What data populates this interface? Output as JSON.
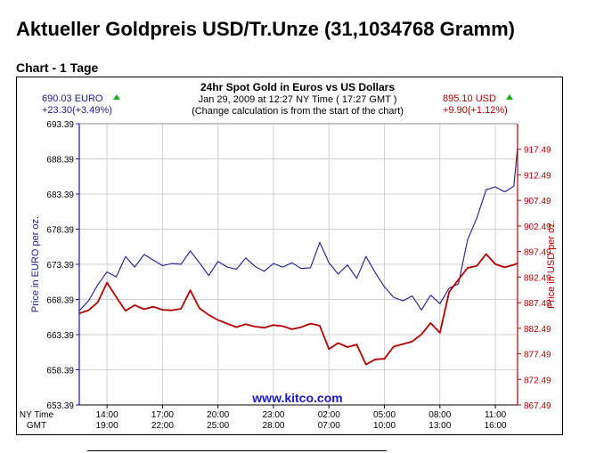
{
  "page": {
    "title": "Aktueller Goldpreis USD/Tr.Unze (31,1034768 Gramm)",
    "chart_heading": "Chart - 1 Tage"
  },
  "colors": {
    "eur_series": "#1a1a8c",
    "usd_series": "#b30000",
    "up_arrow": "#22aa22",
    "watermark": "#1a1acc",
    "grid": "#d0d0d0"
  },
  "chart_data": {
    "type": "line",
    "title": "24hr Spot Gold in Euros vs US Dollars",
    "subtitle": "Jan 29, 2009 at 12:27 NY Time ( 17:27 GMT )",
    "note": "(Change calculation is from the start of the chart)",
    "watermark": "www.kitco.com",
    "left_quote": {
      "price": "690.03 EURO",
      "change": "+23.30(+3.49%)"
    },
    "right_quote": {
      "price": "895.10 USD",
      "change": "+9.90(+1.12%)"
    },
    "ylabel_left": "Price in EURO per oz.",
    "ylabel_right": "Price in USD per oz.",
    "ylim_left": [
      653.39,
      693.39
    ],
    "ylim_right": [
      867.49,
      922.49
    ],
    "yticks_left": [
      "693.39",
      "688.39",
      "683.39",
      "678.39",
      "673.39",
      "668.39",
      "663.39",
      "658.39",
      "653.39"
    ],
    "yticks_right": [
      "917.49",
      "912.49",
      "907.49",
      "902.49",
      "897.49",
      "892.49",
      "887.49",
      "882.49",
      "877.49",
      "872.49",
      "867.49"
    ],
    "x_row_labels": [
      "NY Time",
      "GMT"
    ],
    "xticks_ny": [
      "14:00",
      "17:00",
      "20:00",
      "23:00",
      "02:00",
      "05:00",
      "08:00",
      "11:00"
    ],
    "xticks_gmt": [
      "19:00",
      "22:00",
      "25:00",
      "28:00",
      "07:00",
      "10:00",
      "13:00",
      "16:00"
    ],
    "xtick_hours": [
      1.0,
      4.0,
      7.0,
      10.0,
      13.0,
      16.0,
      19.0,
      22.0
    ],
    "xlim_hours": [
      -0.5,
      23.2
    ],
    "grid": true,
    "series": [
      {
        "name": "EURO",
        "axis": "left",
        "x": [
          -0.5,
          0.0,
          0.5,
          1.0,
          1.5,
          2.0,
          2.5,
          3.0,
          3.5,
          4.0,
          4.5,
          5.0,
          5.5,
          6.0,
          6.5,
          7.0,
          7.5,
          8.0,
          8.5,
          9.0,
          9.5,
          10.0,
          10.5,
          11.0,
          11.5,
          12.0,
          12.5,
          13.0,
          13.5,
          14.0,
          14.5,
          15.0,
          15.5,
          16.0,
          16.5,
          17.0,
          17.5,
          18.0,
          18.5,
          19.0,
          19.5,
          20.0,
          20.5,
          21.0,
          21.5,
          22.0,
          22.5,
          23.0,
          23.2
        ],
        "y": [
          666.8,
          668.2,
          670.5,
          672.3,
          671.6,
          674.5,
          673.0,
          674.8,
          674.0,
          673.2,
          673.5,
          673.4,
          675.3,
          673.6,
          671.8,
          673.8,
          673.0,
          672.7,
          674.3,
          673.1,
          672.4,
          673.5,
          673.0,
          673.6,
          672.8,
          672.9,
          676.5,
          673.6,
          672.0,
          673.3,
          671.4,
          674.5,
          672.2,
          670.2,
          668.7,
          668.2,
          668.9,
          666.9,
          669.0,
          667.8,
          670.0,
          670.6,
          676.9,
          680.0,
          684.0,
          684.4,
          683.7,
          684.5,
          690.0
        ]
      },
      {
        "name": "USD",
        "axis": "right",
        "x": [
          -0.5,
          0.0,
          0.5,
          1.0,
          1.5,
          2.0,
          2.5,
          3.0,
          3.5,
          4.0,
          4.5,
          5.0,
          5.5,
          6.0,
          6.5,
          7.0,
          7.5,
          8.0,
          8.5,
          9.0,
          9.5,
          10.0,
          10.5,
          11.0,
          11.5,
          12.0,
          12.5,
          13.0,
          13.5,
          14.0,
          14.5,
          15.0,
          15.5,
          16.0,
          16.5,
          17.0,
          17.5,
          18.0,
          18.5,
          19.0,
          19.5,
          20.0,
          20.5,
          21.0,
          21.5,
          22.0,
          22.5,
          23.0,
          23.2
        ],
        "y": [
          885.4,
          886.0,
          887.6,
          891.4,
          888.6,
          885.9,
          887.0,
          886.2,
          886.7,
          886.1,
          886.0,
          886.3,
          889.9,
          886.4,
          885.1,
          884.1,
          883.4,
          882.7,
          883.3,
          882.8,
          882.6,
          883.1,
          882.9,
          882.3,
          882.7,
          883.4,
          883.0,
          878.4,
          879.6,
          878.8,
          879.3,
          875.4,
          876.4,
          876.5,
          878.9,
          879.4,
          879.9,
          881.3,
          883.5,
          881.6,
          889.6,
          892.0,
          894.3,
          894.7,
          897.0,
          895.0,
          894.4,
          894.9,
          895.2
        ]
      }
    ]
  }
}
